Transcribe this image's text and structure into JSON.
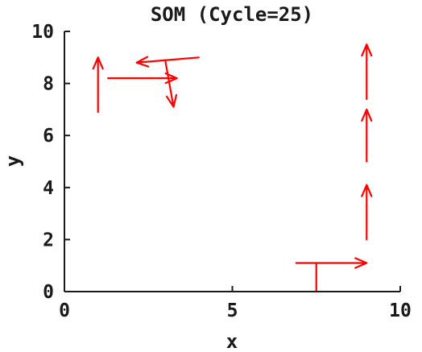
{
  "chart_data": {
    "type": "quiver",
    "title": "SOM (Cycle=25)",
    "xlabel": "x",
    "ylabel": "y",
    "xlim": [
      0,
      10
    ],
    "ylim": [
      0,
      10
    ],
    "xticks": [
      {
        "value": 0,
        "label": "0"
      },
      {
        "value": 5,
        "label": "5"
      },
      {
        "value": 10,
        "label": "10"
      }
    ],
    "yticks": [
      {
        "value": 0,
        "label": "0"
      },
      {
        "value": 2,
        "label": "2"
      },
      {
        "value": 4,
        "label": "4"
      },
      {
        "value": 6,
        "label": "6"
      },
      {
        "value": 8,
        "label": "8"
      },
      {
        "value": 10,
        "label": "10"
      }
    ],
    "grid": false,
    "vector_color": "#ff0000",
    "stems": [
      {
        "x": 7.5,
        "y1": 0,
        "y2": 1.1
      }
    ],
    "vectors": [
      {
        "x0": 1.0,
        "y0": 6.9,
        "x1": 1.0,
        "y1": 9.0
      },
      {
        "x0": 1.3,
        "y0": 8.2,
        "x1": 3.35,
        "y1": 8.2
      },
      {
        "x0": 4.0,
        "y0": 9.0,
        "x1": 2.15,
        "y1": 8.8
      },
      {
        "x0": 3.0,
        "y0": 8.9,
        "x1": 3.25,
        "y1": 7.1
      },
      {
        "x0": 6.9,
        "y0": 1.1,
        "x1": 9.0,
        "y1": 1.1
      },
      {
        "x0": 9.0,
        "y0": 2.0,
        "x1": 9.0,
        "y1": 4.1
      },
      {
        "x0": 9.0,
        "y0": 5.0,
        "x1": 9.0,
        "y1": 7.0
      },
      {
        "x0": 9.0,
        "y0": 7.4,
        "x1": 9.0,
        "y1": 9.5
      }
    ]
  }
}
